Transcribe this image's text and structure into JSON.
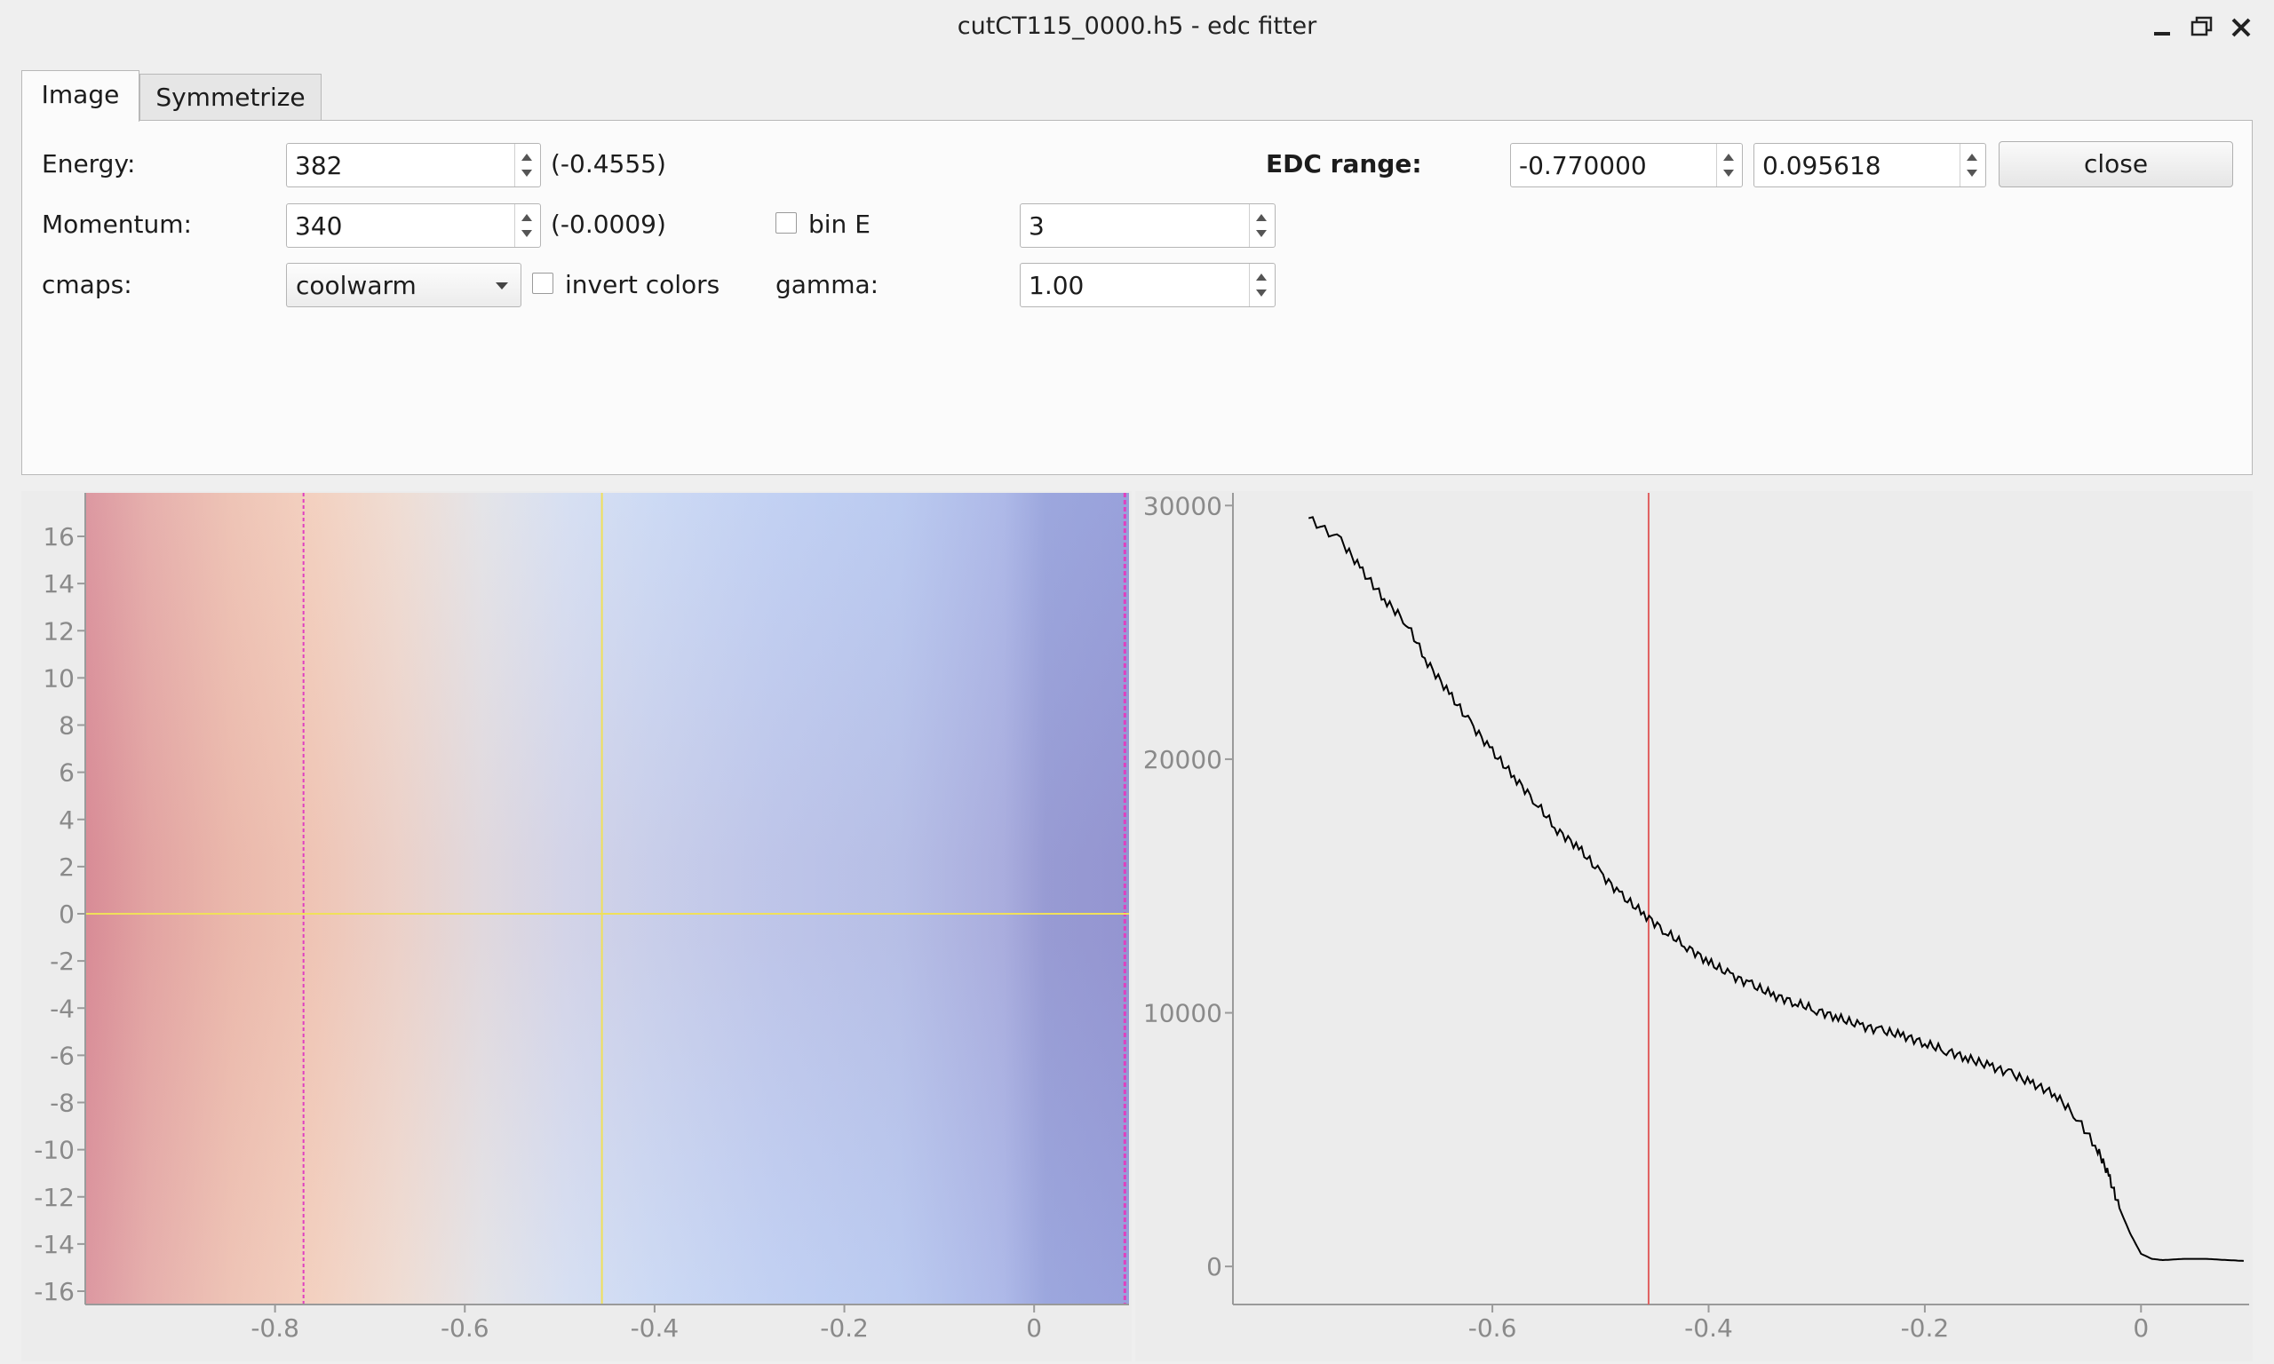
{
  "window": {
    "title": "cutCT115_0000.h5 - edc fitter",
    "controls": [
      "minimize-icon",
      "restore-icon",
      "close-icon"
    ]
  },
  "tabs": [
    {
      "label": "Image",
      "active": true
    },
    {
      "label": "Symmetrize",
      "active": false
    }
  ],
  "controls": {
    "energy": {
      "label": "Energy:",
      "value": "382",
      "readout": "(-0.4555)"
    },
    "momentum": {
      "label": "Momentum:",
      "value": "340",
      "readout": "(-0.0009)"
    },
    "cmaps": {
      "label": "cmaps:",
      "value": "coolwarm"
    },
    "invert_colors": {
      "label": "invert colors",
      "checked": false
    },
    "bin_e": {
      "label": "bin E",
      "checked": false,
      "value": "3"
    },
    "gamma": {
      "label": "gamma:",
      "value": "1.00"
    },
    "edc_range": {
      "label": "EDC range:",
      "min": "-0.770000",
      "max": "0.095618"
    },
    "close_button": "close"
  },
  "image_plot": {
    "x_ticks": [
      "-0.8",
      "-0.6",
      "-0.4",
      "-0.2",
      "0"
    ],
    "y_ticks": [
      "16",
      "14",
      "12",
      "10",
      "8",
      "6",
      "4",
      "2",
      "0",
      "-2",
      "-4",
      "-6",
      "-8",
      "-10",
      "-12",
      "-14",
      "-16"
    ],
    "colormap": "coolwarm",
    "cursor_colors": {
      "crosshair": "#f0e05a",
      "edc_bounds": "#e040c0"
    }
  },
  "chart_data": {
    "type": "line",
    "title": "",
    "xlabel": "",
    "ylabel": "",
    "xlim": [
      -0.84,
      0.1
    ],
    "ylim": [
      -1500,
      30500
    ],
    "x_ticks": [
      -0.6,
      -0.4,
      -0.2,
      0
    ],
    "y_ticks": [
      0,
      10000,
      20000,
      30000
    ],
    "grid": false,
    "cursor_x": -0.4555,
    "series": [
      {
        "line_color": "#000000",
        "x": [
          -0.77,
          -0.74,
          -0.72,
          -0.7,
          -0.68,
          -0.66,
          -0.64,
          -0.62,
          -0.6,
          -0.58,
          -0.56,
          -0.54,
          -0.52,
          -0.5,
          -0.48,
          -0.46,
          -0.44,
          -0.42,
          -0.4,
          -0.38,
          -0.36,
          -0.34,
          -0.32,
          -0.3,
          -0.28,
          -0.26,
          -0.24,
          -0.22,
          -0.2,
          -0.18,
          -0.16,
          -0.14,
          -0.12,
          -0.1,
          -0.08,
          -0.06,
          -0.04,
          -0.03,
          -0.02,
          -0.01,
          0.0,
          0.01,
          0.02,
          0.04,
          0.06,
          0.08,
          0.095
        ],
        "y": [
          29500,
          28600,
          27400,
          26300,
          25400,
          23800,
          22600,
          21400,
          20300,
          19300,
          18300,
          17200,
          16500,
          15500,
          14600,
          13900,
          13200,
          12600,
          12000,
          11500,
          11100,
          10700,
          10400,
          10100,
          9800,
          9500,
          9300,
          9100,
          8800,
          8500,
          8200,
          7900,
          7600,
          7200,
          6800,
          5900,
          4600,
          3600,
          2300,
          1300,
          500,
          300,
          250,
          300,
          300,
          250,
          220
        ]
      }
    ]
  }
}
